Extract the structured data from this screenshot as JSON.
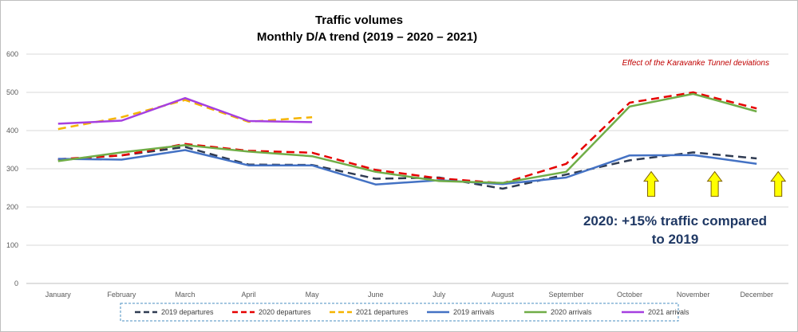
{
  "chart_data": {
    "type": "line",
    "title_lines": [
      "Traffic volumes",
      "Monthly D/A trend (2019 – 2020 – 2021)"
    ],
    "categories": [
      "January",
      "February",
      "March",
      "April",
      "May",
      "June",
      "July",
      "August",
      "September",
      "October",
      "November",
      "December"
    ],
    "ylim": [
      0,
      600
    ],
    "yticks": [
      0,
      100,
      200,
      300,
      400,
      500,
      600
    ],
    "grid": true,
    "legend_position": "bottom",
    "series": [
      {
        "name": "2019 departures",
        "color": "#2f3b52",
        "dash": true,
        "values": [
          323,
          335,
          357,
          311,
          310,
          274,
          277,
          248,
          285,
          322,
          343,
          327
        ]
      },
      {
        "name": "2020 departures",
        "color": "#e60000",
        "dash": true,
        "values": [
          325,
          335,
          365,
          347,
          342,
          297,
          275,
          262,
          313,
          473,
          500,
          458
        ]
      },
      {
        "name": "2021 departures",
        "color": "#f5b400",
        "dash": true,
        "values": [
          404,
          435,
          480,
          423,
          435,
          null,
          null,
          null,
          null,
          null,
          null,
          null
        ]
      },
      {
        "name": "2019 arrivals",
        "color": "#4472c4",
        "dash": false,
        "values": [
          326,
          324,
          349,
          309,
          309,
          259,
          270,
          260,
          277,
          335,
          336,
          313
        ]
      },
      {
        "name": "2020 arrivals",
        "color": "#70ad47",
        "dash": false,
        "values": [
          320,
          343,
          362,
          345,
          333,
          292,
          268,
          263,
          292,
          463,
          496,
          450
        ]
      },
      {
        "name": "2021 arrivals",
        "color": "#a53fe0",
        "dash": false,
        "values": [
          418,
          426,
          485,
          425,
          422,
          null,
          null,
          null,
          null,
          null,
          null,
          null
        ]
      }
    ],
    "annotations": [
      {
        "text": "Effect of the Karavanke Tunnel deviations",
        "color": "#c00000"
      },
      {
        "text_lines": [
          "2020: +15% traffic compared",
          "to 2019"
        ],
        "color": "#1f3864"
      }
    ],
    "arrows": {
      "months": [
        "October",
        "November",
        "December"
      ],
      "y": 230,
      "color": "#ffff00"
    }
  }
}
